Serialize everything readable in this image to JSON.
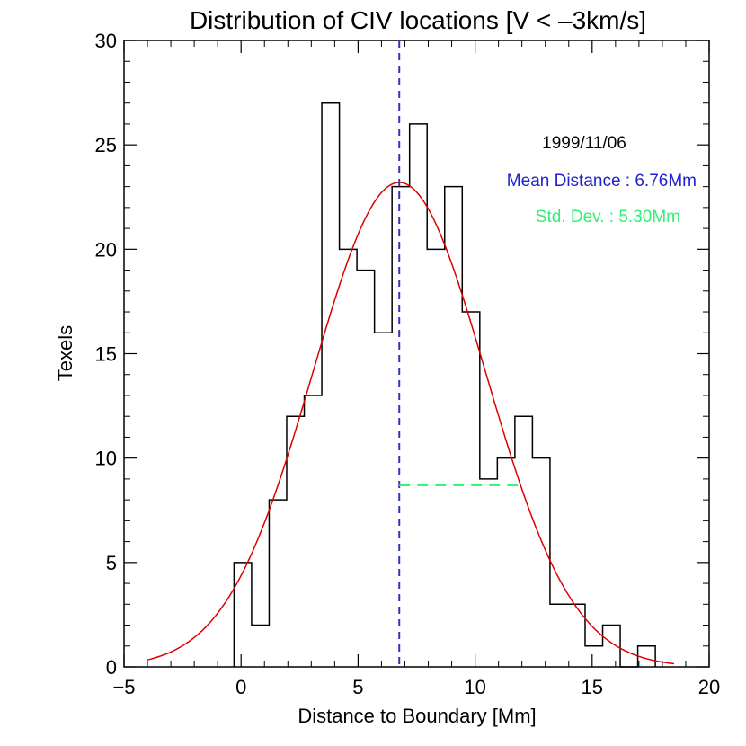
{
  "chart_data": {
    "type": "histogram",
    "title": "Distribution of CIV locations [V < –3km/s]",
    "xlabel": "Distance to Boundary [Mm]",
    "ylabel": "Texels",
    "xlim": [
      -5,
      20
    ],
    "ylim": [
      0,
      30
    ],
    "xticks": [
      -5,
      0,
      5,
      10,
      15,
      20
    ],
    "xtick_labels": [
      "−5",
      "0",
      "5",
      "10",
      "15",
      "20"
    ],
    "yticks": [
      0,
      5,
      10,
      15,
      20,
      25,
      30
    ],
    "ytick_labels": [
      "0",
      "5",
      "10",
      "15",
      "20",
      "25",
      "30"
    ],
    "bins": [
      {
        "x0": -0.3,
        "x1": 0.45,
        "count": 5
      },
      {
        "x0": 0.45,
        "x1": 1.2,
        "count": 2
      },
      {
        "x0": 1.2,
        "x1": 1.95,
        "count": 8
      },
      {
        "x0": 1.95,
        "x1": 2.7,
        "count": 12
      },
      {
        "x0": 2.7,
        "x1": 3.45,
        "count": 13
      },
      {
        "x0": 3.45,
        "x1": 4.2,
        "count": 27
      },
      {
        "x0": 4.2,
        "x1": 4.95,
        "count": 20
      },
      {
        "x0": 4.95,
        "x1": 5.7,
        "count": 19
      },
      {
        "x0": 5.7,
        "x1": 6.45,
        "count": 16
      },
      {
        "x0": 6.45,
        "x1": 7.2,
        "count": 23
      },
      {
        "x0": 7.2,
        "x1": 7.95,
        "count": 26
      },
      {
        "x0": 7.95,
        "x1": 8.7,
        "count": 20
      },
      {
        "x0": 8.7,
        "x1": 9.45,
        "count": 23
      },
      {
        "x0": 9.45,
        "x1": 10.2,
        "count": 17
      },
      {
        "x0": 10.2,
        "x1": 10.95,
        "count": 9
      },
      {
        "x0": 10.95,
        "x1": 11.7,
        "count": 10
      },
      {
        "x0": 11.7,
        "x1": 12.45,
        "count": 12
      },
      {
        "x0": 12.45,
        "x1": 13.2,
        "count": 10
      },
      {
        "x0": 13.2,
        "x1": 13.95,
        "count": 3
      },
      {
        "x0": 13.95,
        "x1": 14.7,
        "count": 3
      },
      {
        "x0": 14.7,
        "x1": 15.45,
        "count": 1
      },
      {
        "x0": 15.45,
        "x1": 16.2,
        "count": 2
      },
      {
        "x0": 16.2,
        "x1": 16.95,
        "count": 0
      },
      {
        "x0": 16.95,
        "x1": 17.7,
        "count": 1
      }
    ],
    "gaussian_fit": {
      "amplitude": 23.2,
      "mean": 6.76,
      "sigma": 3.7,
      "color": "#dd0000"
    },
    "mean_line": {
      "x": 6.76,
      "color": "#3333bb"
    },
    "stddev_line": {
      "x0": 6.76,
      "x1": 12.06,
      "y": 8.7,
      "color": "#33ee77"
    },
    "annotations": {
      "date": "1999/11/06",
      "mean_text": "Mean Distance : 6.76Mm",
      "std_text": "Std. Dev. : 5.30Mm",
      "date_color": "#000000",
      "mean_color": "#2222cc",
      "std_color": "#33ee77"
    }
  }
}
